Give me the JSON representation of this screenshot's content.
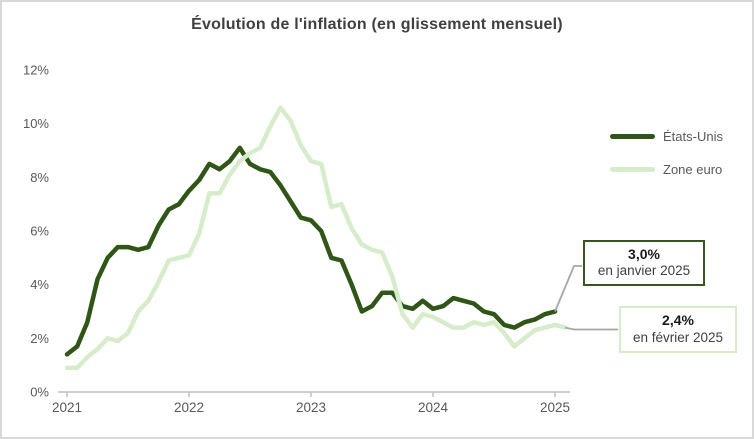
{
  "chart_data": {
    "type": "line",
    "title": "Évolution de l'inflation (en glissement mensuel)",
    "x": [
      "2021-01",
      "2021-02",
      "2021-03",
      "2021-04",
      "2021-05",
      "2021-06",
      "2021-07",
      "2021-08",
      "2021-09",
      "2021-10",
      "2021-11",
      "2021-12",
      "2022-01",
      "2022-02",
      "2022-03",
      "2022-04",
      "2022-05",
      "2022-06",
      "2022-07",
      "2022-08",
      "2022-09",
      "2022-10",
      "2022-11",
      "2022-12",
      "2023-01",
      "2023-02",
      "2023-03",
      "2023-04",
      "2023-05",
      "2023-06",
      "2023-07",
      "2023-08",
      "2023-09",
      "2023-10",
      "2023-11",
      "2023-12",
      "2024-01",
      "2024-02",
      "2024-03",
      "2024-04",
      "2024-05",
      "2024-06",
      "2024-07",
      "2024-08",
      "2024-09",
      "2024-10",
      "2024-11",
      "2024-12",
      "2025-01",
      "2025-02"
    ],
    "x_tick_labels": [
      "2021",
      "2022",
      "2023",
      "2024",
      "2025"
    ],
    "y_tick_labels": [
      "0%",
      "2%",
      "4%",
      "6%",
      "8%",
      "10%",
      "12%"
    ],
    "ylim": [
      0,
      12
    ],
    "unit": "%",
    "grid": false,
    "legend_position": "right",
    "series": [
      {
        "name": "États-Unis",
        "color": "#2f5617",
        "values": [
          1.4,
          1.7,
          2.6,
          4.2,
          5.0,
          5.4,
          5.4,
          5.3,
          5.4,
          6.2,
          6.8,
          7.0,
          7.5,
          7.9,
          8.5,
          8.3,
          8.6,
          9.1,
          8.5,
          8.3,
          8.2,
          7.7,
          7.1,
          6.5,
          6.4,
          6.0,
          5.0,
          4.9,
          4.0,
          3.0,
          3.2,
          3.7,
          3.7,
          3.2,
          3.1,
          3.4,
          3.1,
          3.2,
          3.5,
          3.4,
          3.3,
          3.0,
          2.9,
          2.5,
          2.4,
          2.6,
          2.7,
          2.9,
          3.0,
          null
        ]
      },
      {
        "name": "Zone euro",
        "color": "#d7ecca",
        "values": [
          0.9,
          0.9,
          1.3,
          1.6,
          2.0,
          1.9,
          2.2,
          3.0,
          3.4,
          4.1,
          4.9,
          5.0,
          5.1,
          5.9,
          7.4,
          7.4,
          8.1,
          8.6,
          8.9,
          9.1,
          9.9,
          10.6,
          10.1,
          9.2,
          8.6,
          8.5,
          6.9,
          7.0,
          6.1,
          5.5,
          5.3,
          5.2,
          4.3,
          2.9,
          2.4,
          2.9,
          2.8,
          2.6,
          2.4,
          2.4,
          2.6,
          2.5,
          2.6,
          2.2,
          1.7,
          2.0,
          2.3,
          2.4,
          2.5,
          2.4
        ]
      }
    ],
    "annotations": [
      {
        "series": "États-Unis",
        "value": "3,0%",
        "label": "en janvier 2025",
        "border_color": "#375623"
      },
      {
        "series": "Zone euro",
        "value": "2,4%",
        "label": "en février 2025",
        "border_color": "#d7ecca"
      }
    ],
    "colors": {
      "axis": "#bfbfbf",
      "tick_text": "#595959",
      "title_text": "#404040",
      "connector": "#a6a6a6",
      "background": "#ffffff"
    }
  }
}
